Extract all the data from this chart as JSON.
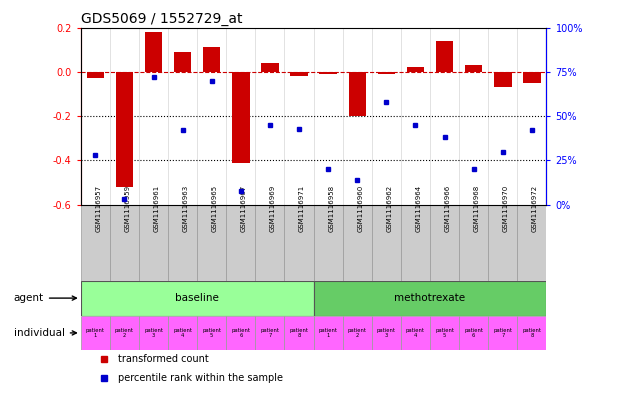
{
  "title": "GDS5069 / 1552729_at",
  "samples": [
    "GSM1116957",
    "GSM1116959",
    "GSM1116961",
    "GSM1116963",
    "GSM1116965",
    "GSM1116967",
    "GSM1116969",
    "GSM1116971",
    "GSM1116958",
    "GSM1116960",
    "GSM1116962",
    "GSM1116964",
    "GSM1116966",
    "GSM1116968",
    "GSM1116970",
    "GSM1116972"
  ],
  "bar_values": [
    -0.03,
    -0.52,
    0.18,
    0.09,
    0.11,
    -0.41,
    0.04,
    -0.02,
    -0.01,
    -0.2,
    -0.01,
    0.02,
    0.14,
    0.03,
    -0.07,
    -0.05
  ],
  "percentile_values": [
    28,
    3,
    72,
    42,
    70,
    8,
    45,
    43,
    20,
    14,
    58,
    45,
    38,
    20,
    30,
    42
  ],
  "ylim_left": [
    -0.6,
    0.2
  ],
  "ylim_right": [
    0,
    100
  ],
  "yticks_left": [
    -0.6,
    -0.4,
    -0.2,
    0.0,
    0.2
  ],
  "yticks_right": [
    0,
    25,
    50,
    75,
    100
  ],
  "ytick_labels_right": [
    "0%",
    "25%",
    "50%",
    "75%",
    "100%"
  ],
  "bar_color": "#cc0000",
  "point_color": "#0000cc",
  "hline_color": "#cc0000",
  "dotted_line_color": "#000000",
  "sample_box_color": "#cccccc",
  "agent_baseline_color": "#99ff99",
  "agent_methotrexate_color": "#66cc66",
  "individual_color": "#ff66ff",
  "baseline_label": "baseline",
  "methotrexate_label": "methotrexate",
  "n_baseline": 8,
  "n_methotrexate": 8,
  "legend_bar": "transformed count",
  "legend_point": "percentile rank within the sample",
  "background_color": "#ffffff",
  "title_fontsize": 10,
  "tick_fontsize": 7,
  "sample_fontsize": 5.0,
  "annotation_fontsize": 7.5
}
